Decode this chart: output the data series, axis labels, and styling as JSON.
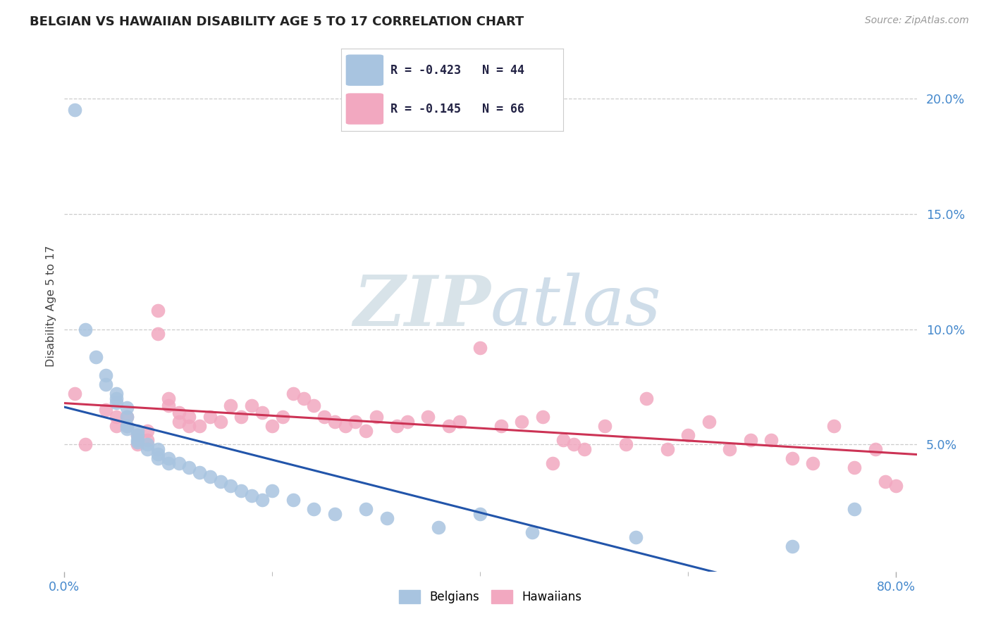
{
  "title": "BELGIAN VS HAWAIIAN DISABILITY AGE 5 TO 17 CORRELATION CHART",
  "source": "Source: ZipAtlas.com",
  "ylabel": "Disability Age 5 to 17",
  "xlim": [
    0.0,
    0.82
  ],
  "ylim": [
    -0.005,
    0.225
  ],
  "ytick_values": [
    0.05,
    0.1,
    0.15,
    0.2
  ],
  "xtick_values": [
    0.0,
    0.2,
    0.4,
    0.6,
    0.8
  ],
  "xtick_labels": [
    "0.0%",
    "",
    "",
    "",
    "80.0%"
  ],
  "ytick_labels": [
    "5.0%",
    "10.0%",
    "15.0%",
    "20.0%"
  ],
  "belgian_color": "#a8c4e0",
  "hawaiian_color": "#f2a8c0",
  "belgian_line_color": "#2255aa",
  "hawaiian_line_color": "#cc3355",
  "legend_R_belgian": "R = -0.423",
  "legend_N_belgian": "N = 44",
  "legend_R_hawaiian": "R = -0.145",
  "legend_N_hawaiian": "N = 66",
  "watermark_zip": "ZIP",
  "watermark_atlas": "atlas",
  "background_color": "#ffffff",
  "grid_color": "#cccccc",
  "belgian_x": [
    0.01,
    0.02,
    0.03,
    0.04,
    0.04,
    0.05,
    0.05,
    0.05,
    0.06,
    0.06,
    0.06,
    0.06,
    0.07,
    0.07,
    0.07,
    0.07,
    0.08,
    0.08,
    0.09,
    0.09,
    0.09,
    0.1,
    0.1,
    0.11,
    0.12,
    0.13,
    0.14,
    0.15,
    0.16,
    0.17,
    0.18,
    0.19,
    0.2,
    0.22,
    0.24,
    0.26,
    0.29,
    0.31,
    0.36,
    0.4,
    0.45,
    0.55,
    0.7,
    0.76
  ],
  "belgian_y": [
    0.195,
    0.1,
    0.088,
    0.08,
    0.076,
    0.072,
    0.07,
    0.068,
    0.066,
    0.062,
    0.058,
    0.057,
    0.056,
    0.054,
    0.052,
    0.051,
    0.05,
    0.048,
    0.048,
    0.046,
    0.044,
    0.044,
    0.042,
    0.042,
    0.04,
    0.038,
    0.036,
    0.034,
    0.032,
    0.03,
    0.028,
    0.026,
    0.03,
    0.026,
    0.022,
    0.02,
    0.022,
    0.018,
    0.014,
    0.02,
    0.012,
    0.01,
    0.006,
    0.022
  ],
  "hawaiian_x": [
    0.01,
    0.02,
    0.04,
    0.05,
    0.05,
    0.06,
    0.06,
    0.07,
    0.07,
    0.08,
    0.08,
    0.09,
    0.09,
    0.1,
    0.1,
    0.11,
    0.11,
    0.12,
    0.12,
    0.13,
    0.14,
    0.15,
    0.16,
    0.17,
    0.18,
    0.19,
    0.2,
    0.21,
    0.22,
    0.23,
    0.24,
    0.25,
    0.26,
    0.27,
    0.28,
    0.29,
    0.3,
    0.32,
    0.33,
    0.35,
    0.37,
    0.38,
    0.4,
    0.42,
    0.44,
    0.46,
    0.48,
    0.5,
    0.52,
    0.54,
    0.56,
    0.58,
    0.6,
    0.62,
    0.64,
    0.66,
    0.68,
    0.7,
    0.72,
    0.74,
    0.76,
    0.78,
    0.79,
    0.8,
    0.47,
    0.49
  ],
  "hawaiian_y": [
    0.072,
    0.05,
    0.065,
    0.062,
    0.058,
    0.062,
    0.058,
    0.054,
    0.05,
    0.056,
    0.052,
    0.108,
    0.098,
    0.07,
    0.067,
    0.064,
    0.06,
    0.062,
    0.058,
    0.058,
    0.062,
    0.06,
    0.067,
    0.062,
    0.067,
    0.064,
    0.058,
    0.062,
    0.072,
    0.07,
    0.067,
    0.062,
    0.06,
    0.058,
    0.06,
    0.056,
    0.062,
    0.058,
    0.06,
    0.062,
    0.058,
    0.06,
    0.092,
    0.058,
    0.06,
    0.062,
    0.052,
    0.048,
    0.058,
    0.05,
    0.07,
    0.048,
    0.054,
    0.06,
    0.048,
    0.052,
    0.052,
    0.044,
    0.042,
    0.058,
    0.04,
    0.048,
    0.034,
    0.032,
    0.042,
    0.05
  ]
}
